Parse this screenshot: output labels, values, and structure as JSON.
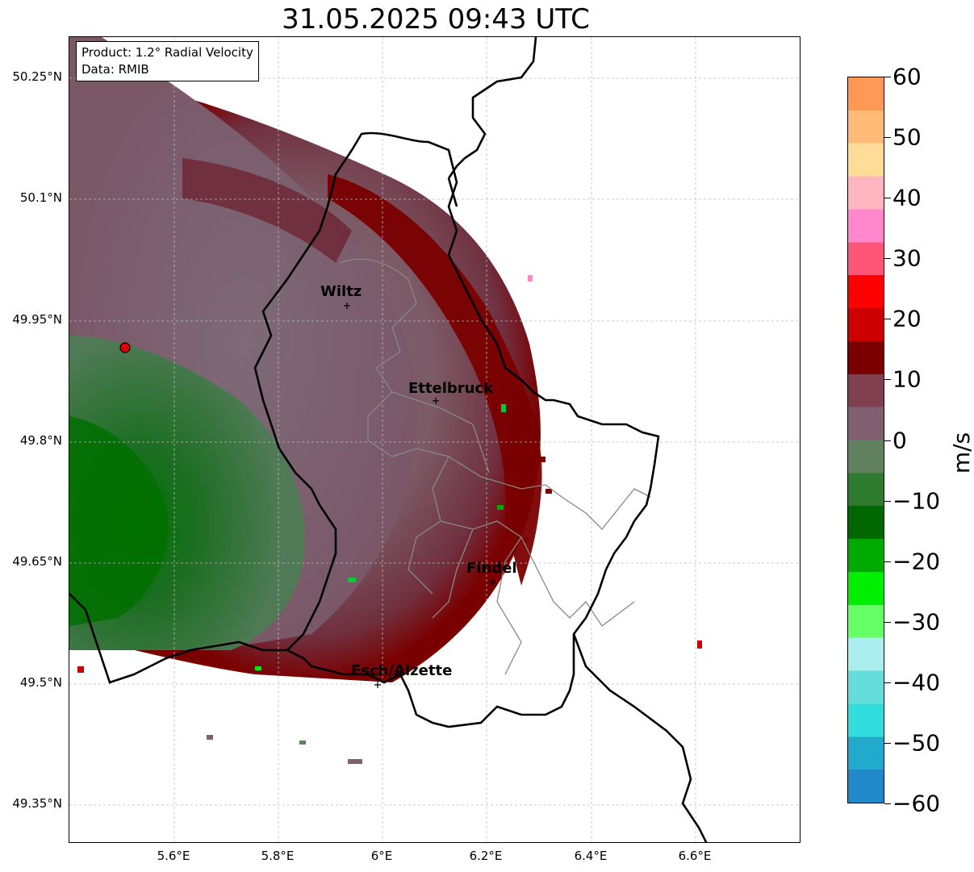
{
  "title": "31.05.2025 09:43 UTC",
  "info_box": {
    "product": "Product: 1.2° Radial Velocity",
    "data_source": "Data: RMIB"
  },
  "latitude_labels": [
    "50.25°N",
    "50.1°N",
    "49.95°N",
    "49.8°N",
    "49.65°N",
    "49.5°N",
    "49.35°N"
  ],
  "longitude_labels": [
    "5.6°E",
    "5.8°E",
    "6°E",
    "6.2°E",
    "6.4°E",
    "6.6°E"
  ],
  "cities": [
    {
      "name": "Wiltz"
    },
    {
      "name": "Ettelbruck"
    },
    {
      "name": "Findel"
    },
    {
      "name": "Esch/Alzette"
    }
  ],
  "radar_marker": {
    "icon": "radar-site-marker-icon",
    "color": "#e00000"
  },
  "colorbar": {
    "unit": "m/s",
    "tick_labels": [
      "60",
      "50",
      "40",
      "30",
      "20",
      "10",
      "0",
      "−10",
      "−20",
      "−30",
      "−40",
      "−50",
      "−60"
    ],
    "min": -60,
    "max": 60,
    "colors_top_to_bottom": [
      "#ff9955",
      "#ffbb77",
      "#ffdd99",
      "#ffb6c1",
      "#ff88cc",
      "#ff5577",
      "#ff0000",
      "#cc0000",
      "#7a0000",
      "#804050",
      "#806070",
      "#608060",
      "#2e7a2e",
      "#006600",
      "#00aa00",
      "#00ee00",
      "#66ff66",
      "#aaeeee",
      "#66dddd",
      "#33dddd",
      "#22aacc",
      "#2288cc"
    ]
  },
  "colors": {
    "approaching_dark": "#006400",
    "receding_dark": "#7a0000",
    "near_zero": "#806070",
    "border": "#000000",
    "district_border": "#888888"
  }
}
